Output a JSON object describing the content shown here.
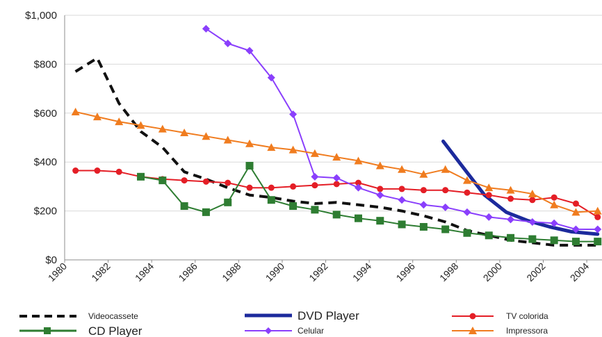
{
  "chart_data": {
    "type": "line",
    "ylim": [
      0,
      1000
    ],
    "xlim": [
      1980,
      2004.7
    ],
    "grid": "horizontal",
    "legend": "bottom",
    "y_ticks": [
      "$0",
      "$200",
      "$400",
      "$600",
      "$800",
      "$1,000"
    ],
    "y_tick_values": [
      0,
      200,
      400,
      600,
      800,
      1000
    ],
    "x_ticks": [
      "1980",
      "1982",
      "1984",
      "1986",
      "1988",
      "1990",
      "1992",
      "1994",
      "1996",
      "1998",
      "2000",
      "2002",
      "2004"
    ],
    "x_tick_values": [
      1980,
      1982,
      1984,
      1986,
      1988,
      1990,
      1992,
      1994,
      1996,
      1998,
      2000,
      2002,
      2004
    ],
    "series": [
      {
        "name": "Videocassete",
        "color": "#111111",
        "style": "dashed",
        "marker": "none",
        "points": [
          [
            1980.5,
            770
          ],
          [
            1981.5,
            825
          ],
          [
            1982.5,
            640
          ],
          [
            1983.5,
            525
          ],
          [
            1984.5,
            460
          ],
          [
            1985.5,
            360
          ],
          [
            1986.5,
            330
          ],
          [
            1987.5,
            295
          ],
          [
            1988.5,
            265
          ],
          [
            1989.5,
            255
          ],
          [
            1990.5,
            240
          ],
          [
            1991.5,
            230
          ],
          [
            1992.5,
            235
          ],
          [
            1993.5,
            225
          ],
          [
            1994.5,
            215
          ],
          [
            1995.5,
            200
          ],
          [
            1996.5,
            180
          ],
          [
            1997.5,
            155
          ],
          [
            1998.5,
            120
          ],
          [
            1999.5,
            100
          ],
          [
            2000.5,
            80
          ],
          [
            2001.5,
            70
          ],
          [
            2002.5,
            60
          ],
          [
            2003.5,
            60
          ],
          [
            2004.5,
            60
          ]
        ]
      },
      {
        "name": "DVD Player",
        "color": "#1c2a9c",
        "style": "thick",
        "marker": "none",
        "points": [
          [
            1997.4,
            485
          ],
          [
            1998.3,
            380
          ],
          [
            1999.3,
            265
          ],
          [
            2000.3,
            195
          ],
          [
            2001.3,
            160
          ],
          [
            2002.3,
            135
          ],
          [
            2003.3,
            115
          ],
          [
            2004.5,
            105
          ]
        ]
      },
      {
        "name": "TV colorida",
        "color": "#e41e26",
        "style": "solid",
        "marker": "circle",
        "points": [
          [
            1980.5,
            365
          ],
          [
            1981.5,
            365
          ],
          [
            1982.5,
            360
          ],
          [
            1983.5,
            340
          ],
          [
            1984.5,
            330
          ],
          [
            1985.5,
            325
          ],
          [
            1986.5,
            320
          ],
          [
            1987.5,
            315
          ],
          [
            1988.5,
            295
          ],
          [
            1989.5,
            295
          ],
          [
            1990.5,
            300
          ],
          [
            1991.5,
            305
          ],
          [
            1992.5,
            310
          ],
          [
            1993.5,
            315
          ],
          [
            1994.5,
            290
          ],
          [
            1995.5,
            290
          ],
          [
            1996.5,
            285
          ],
          [
            1997.5,
            285
          ],
          [
            1998.5,
            275
          ],
          [
            1999.5,
            265
          ],
          [
            2000.5,
            250
          ],
          [
            2001.5,
            245
          ],
          [
            2002.5,
            255
          ],
          [
            2003.5,
            230
          ],
          [
            2004.5,
            175
          ]
        ]
      },
      {
        "name": "CD Player",
        "color": "#2e7d32",
        "style": "solid",
        "marker": "square",
        "points": [
          [
            1983.5,
            340
          ],
          [
            1984.5,
            325
          ],
          [
            1985.5,
            220
          ],
          [
            1986.5,
            195
          ],
          [
            1987.5,
            235
          ],
          [
            1988.5,
            385
          ],
          [
            1989.5,
            245
          ],
          [
            1990.5,
            220
          ],
          [
            1991.5,
            205
          ],
          [
            1992.5,
            185
          ],
          [
            1993.5,
            170
          ],
          [
            1994.5,
            160
          ],
          [
            1995.5,
            145
          ],
          [
            1996.5,
            135
          ],
          [
            1997.5,
            125
          ],
          [
            1998.5,
            110
          ],
          [
            1999.5,
            100
          ],
          [
            2000.5,
            90
          ],
          [
            2001.5,
            85
          ],
          [
            2002.5,
            80
          ],
          [
            2003.5,
            75
          ],
          [
            2004.5,
            75
          ]
        ]
      },
      {
        "name": "Celular",
        "color": "#8a3ffc",
        "style": "solid",
        "marker": "diamond",
        "points": [
          [
            1986.5,
            945
          ],
          [
            1987.5,
            885
          ],
          [
            1988.5,
            855
          ],
          [
            1989.5,
            745
          ],
          [
            1990.5,
            595
          ],
          [
            1991.5,
            340
          ],
          [
            1992.5,
            335
          ],
          [
            1993.5,
            295
          ],
          [
            1994.5,
            265
          ],
          [
            1995.5,
            245
          ],
          [
            1996.5,
            225
          ],
          [
            1997.5,
            215
          ],
          [
            1998.5,
            195
          ],
          [
            1999.5,
            175
          ],
          [
            2000.5,
            165
          ],
          [
            2001.5,
            155
          ],
          [
            2002.5,
            150
          ],
          [
            2003.5,
            125
          ],
          [
            2004.5,
            125
          ]
        ]
      },
      {
        "name": "Impressora",
        "color": "#f07c1f",
        "style": "solid",
        "marker": "triangle",
        "points": [
          [
            1980.5,
            605
          ],
          [
            1981.5,
            585
          ],
          [
            1982.5,
            565
          ],
          [
            1983.5,
            550
          ],
          [
            1984.5,
            535
          ],
          [
            1985.5,
            520
          ],
          [
            1986.5,
            505
          ],
          [
            1987.5,
            490
          ],
          [
            1988.5,
            475
          ],
          [
            1989.5,
            460
          ],
          [
            1990.5,
            450
          ],
          [
            1991.5,
            435
          ],
          [
            1992.5,
            420
          ],
          [
            1993.5,
            405
          ],
          [
            1994.5,
            385
          ],
          [
            1995.5,
            370
          ],
          [
            1996.5,
            350
          ],
          [
            1997.5,
            370
          ],
          [
            1998.5,
            325
          ],
          [
            1999.5,
            295
          ],
          [
            2000.5,
            285
          ],
          [
            2001.5,
            270
          ],
          [
            2002.5,
            225
          ],
          [
            2003.5,
            195
          ],
          [
            2004.5,
            200
          ]
        ]
      }
    ]
  }
}
